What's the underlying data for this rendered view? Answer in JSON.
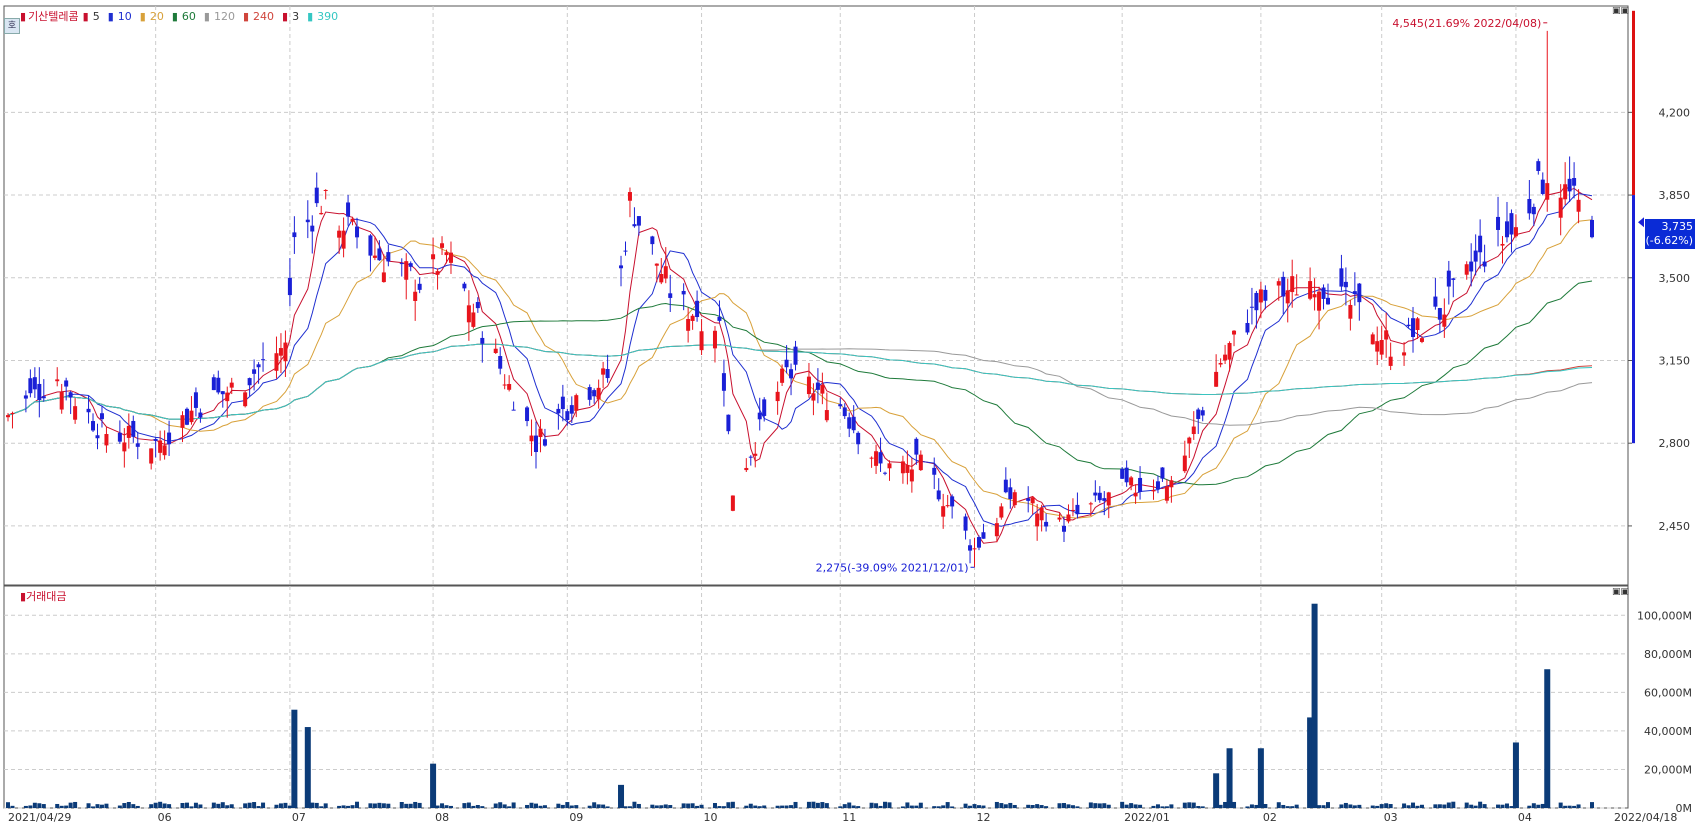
{
  "legend": {
    "stock_name": "기산텔레콤",
    "items": [
      {
        "label": "5",
        "color": "#c8102e"
      },
      {
        "label": "10",
        "color": "#1f2fd0"
      },
      {
        "label": "20",
        "color": "#d8a13a"
      },
      {
        "label": "60",
        "color": "#1e7a3a"
      },
      {
        "label": "120",
        "color": "#999999"
      },
      {
        "label": "240",
        "color": "#d0453c"
      },
      {
        "label": "3",
        "color": "#c8102e"
      },
      {
        "label": "390",
        "color": "#35c7c3"
      }
    ]
  },
  "hangul_toggle": "호",
  "volume_legend": "거래대금",
  "annotations": {
    "high": "4,545(21.69% 2022/04/08)",
    "low": "2,275(-39.09% 2021/12/01)"
  },
  "current_price": {
    "value": "3,735",
    "change": "(-6.62%)"
  },
  "chart_data": [
    {
      "type": "candlestick",
      "title": "기산텔레콤",
      "y_axis_ticks": [
        "4,200",
        "3,850",
        "3,500",
        "3,150",
        "2,800",
        "2,450"
      ],
      "ylim": [
        2200,
        4650
      ],
      "x_axis_ticks": [
        "2021/04/29",
        "06",
        "07",
        "08",
        "09",
        "10",
        "11",
        "12",
        "2022/01",
        "02",
        "03",
        "04",
        "2022/04/18"
      ],
      "moving_averages": [
        "5",
        "10",
        "20",
        "60",
        "120",
        "240",
        "390"
      ],
      "grid": true,
      "series_close": [
        {
          "date": "2021/04/29",
          "close": 2920
        },
        {
          "date": "2021/05/10",
          "close": 3080
        },
        {
          "date": "2021/05/20",
          "close": 2850
        },
        {
          "date": "2021/06/01",
          "close": 2800
        },
        {
          "date": "2021/06/10",
          "close": 2950
        },
        {
          "date": "2021/06/20",
          "close": 3050
        },
        {
          "date": "2021/06/30",
          "close": 3220
        },
        {
          "date": "2021/07/02",
          "close": 3650
        },
        {
          "date": "2021/07/08",
          "close": 3820
        },
        {
          "date": "2021/07/20",
          "close": 3600
        },
        {
          "date": "2021/07/30",
          "close": 3480
        },
        {
          "date": "2021/08/05",
          "close": 3600
        },
        {
          "date": "2021/08/15",
          "close": 3200
        },
        {
          "date": "2021/08/25",
          "close": 2800
        },
        {
          "date": "2021/09/03",
          "close": 3000
        },
        {
          "date": "2021/09/10",
          "close": 3080
        },
        {
          "date": "2021/09/15",
          "close": 3820
        },
        {
          "date": "2021/09/25",
          "close": 3400
        },
        {
          "date": "2021/10/05",
          "close": 3300
        },
        {
          "date": "2021/10/08",
          "close": 2600
        },
        {
          "date": "2021/10/20",
          "close": 3100
        },
        {
          "date": "2021/11/01",
          "close": 2960
        },
        {
          "date": "2021/11/10",
          "close": 2700
        },
        {
          "date": "2021/11/20",
          "close": 2700
        },
        {
          "date": "2021/12/01",
          "close": 2350
        },
        {
          "date": "2021/12/10",
          "close": 2600
        },
        {
          "date": "2021/12/20",
          "close": 2450
        },
        {
          "date": "2022/01/03",
          "close": 2600
        },
        {
          "date": "2022/01/15",
          "close": 2650
        },
        {
          "date": "2022/01/25",
          "close": 3150
        },
        {
          "date": "2022/02/03",
          "close": 3400
        },
        {
          "date": "2022/02/15",
          "close": 3500
        },
        {
          "date": "2022/02/25",
          "close": 3350
        },
        {
          "date": "2022/03/05",
          "close": 3200
        },
        {
          "date": "2022/03/15",
          "close": 3350
        },
        {
          "date": "2022/03/25",
          "close": 3600
        },
        {
          "date": "2022/04/01",
          "close": 3700
        },
        {
          "date": "2022/04/08",
          "close": 3950
        },
        {
          "date": "2022/04/18",
          "close": 3735
        }
      ],
      "high": {
        "value": 4545,
        "date": "2022/04/08"
      },
      "low": {
        "value": 2275,
        "date": "2021/12/01"
      }
    },
    {
      "type": "bar",
      "title": "거래대금",
      "y_axis_ticks": [
        "100,000M",
        "80,000M",
        "60,000M",
        "40,000M",
        "20,000M",
        "0M"
      ],
      "ylim": [
        0,
        110000
      ],
      "unit": "M",
      "bars": [
        {
          "date": "2021/07/02",
          "value": 51000
        },
        {
          "date": "2021/07/05",
          "value": 42000
        },
        {
          "date": "2021/08/02",
          "value": 23000
        },
        {
          "date": "2021/09/13",
          "value": 12000
        },
        {
          "date": "2022/01/24",
          "value": 18000
        },
        {
          "date": "2022/01/27",
          "value": 31000
        },
        {
          "date": "2022/02/03",
          "value": 31000
        },
        {
          "date": "2022/02/14",
          "value": 47000
        },
        {
          "date": "2022/02/15",
          "value": 106000
        },
        {
          "date": "2022/04/01",
          "value": 34000
        },
        {
          "date": "2022/04/08",
          "value": 72000
        }
      ]
    }
  ]
}
